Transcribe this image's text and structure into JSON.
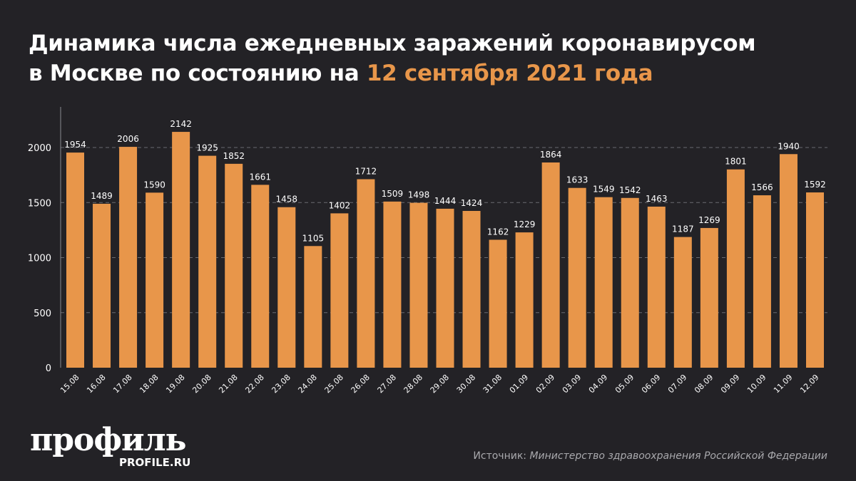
{
  "title": {
    "line1": "Динамика числа ежедневных заражений коронавирусом",
    "line2_prefix": "в Москве по состоянию на ",
    "line2_accent": "12 сентября 2021 года"
  },
  "logo": {
    "main": "профиль",
    "sub": "PROFILE.RU"
  },
  "source": {
    "label": "Источник: ",
    "value": "Министерство здравоохранения Российской Федерации"
  },
  "colors": {
    "bar": "#e8964a",
    "background": "#232226",
    "accent": "#e8964a",
    "grid": "#6a6a70"
  },
  "chart_data": {
    "type": "bar",
    "title": "Динамика числа ежедневных заражений коронавирусом в Москве по состоянию на 12 сентября 2021 года",
    "categories": [
      "15.08",
      "16.08",
      "17.08",
      "18.08",
      "19.08",
      "20.08",
      "21.08",
      "22.08",
      "23.08",
      "24.08",
      "25.08",
      "26.08",
      "27.08",
      "28.08",
      "29.08",
      "30.08",
      "31.08",
      "01.09",
      "02.09",
      "03.09",
      "04.09",
      "05.09",
      "06.09",
      "07.09",
      "08.09",
      "09.09",
      "10.09",
      "11.09",
      "12.09"
    ],
    "values": [
      1954,
      1489,
      2006,
      1590,
      2142,
      1925,
      1852,
      1661,
      1458,
      1105,
      1402,
      1712,
      1509,
      1498,
      1444,
      1424,
      1162,
      1229,
      1864,
      1633,
      1549,
      1542,
      1463,
      1187,
      1269,
      1801,
      1566,
      1940,
      1592
    ],
    "yticks": [
      0,
      500,
      1000,
      1500,
      2000
    ],
    "ylim": [
      0,
      2000
    ],
    "grid": "horizontal dashed",
    "data_labels": true,
    "xlabel": "",
    "ylabel": ""
  }
}
